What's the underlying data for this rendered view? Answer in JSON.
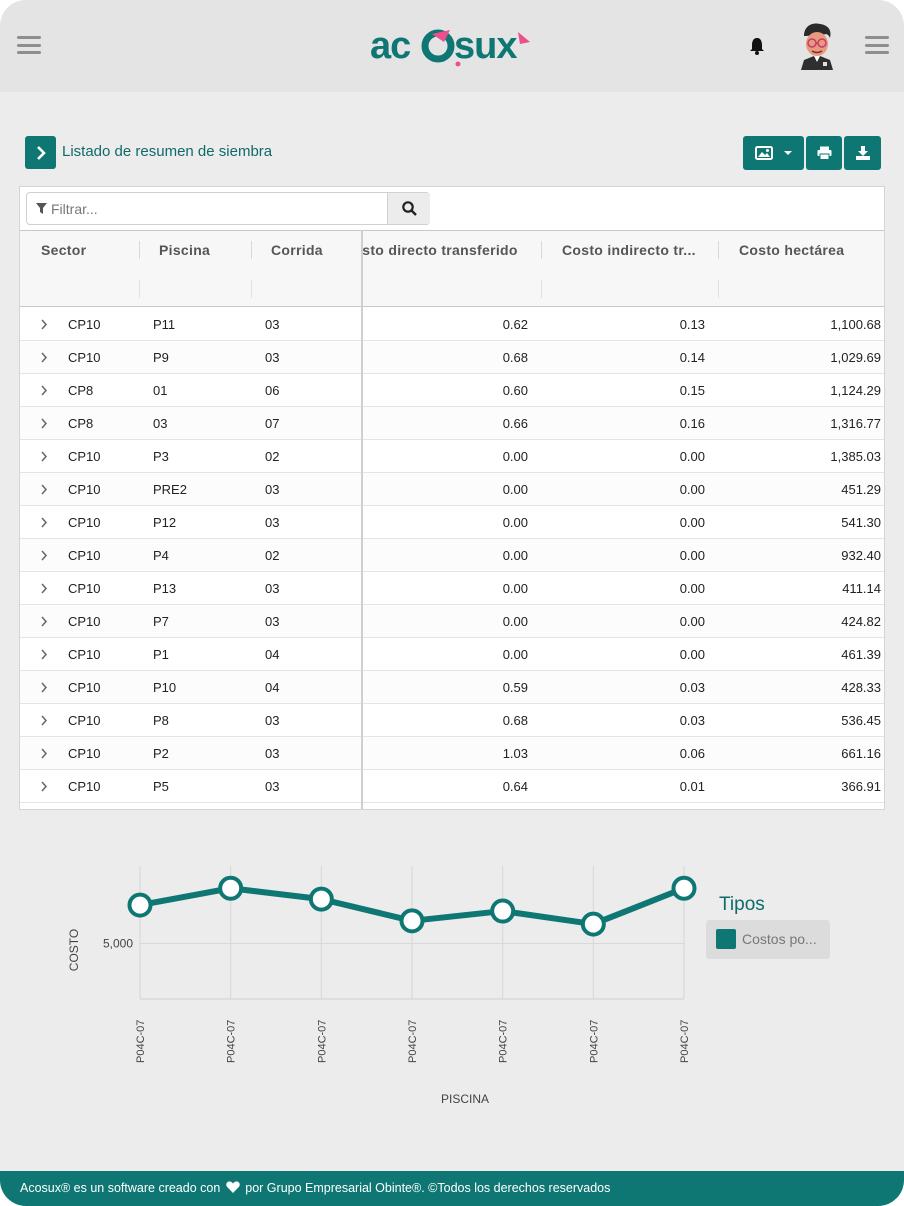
{
  "header": {
    "logo_text": "acosux",
    "menu_icon": "hamburger-icon",
    "bell_icon": "bell-icon",
    "settings_menu_icon": "hamburger-icon"
  },
  "toolbar": {
    "title": "Listado de resumen de siembra",
    "expand_icon": "chevron-right-icon",
    "image_icon": "image-icon",
    "dropdown_icon": "caret-down-icon",
    "print_icon": "printer-icon",
    "download_icon": "download-icon"
  },
  "filter": {
    "placeholder": "Filtrar...",
    "filter_icon": "funnel-icon",
    "search_icon": "search-icon"
  },
  "table": {
    "columns": [
      "Sector",
      "Piscina",
      "Corrida",
      "Costo directo transferido",
      "Costo indirecto tr...",
      "Costo hectárea"
    ],
    "rows": [
      [
        "CP10",
        "P11",
        "03",
        "0.62",
        "0.13",
        "1,100.68"
      ],
      [
        "CP10",
        "P9",
        "03",
        "0.68",
        "0.14",
        "1,029.69"
      ],
      [
        "CP8",
        "01",
        "06",
        "0.60",
        "0.15",
        "1,124.29"
      ],
      [
        "CP8",
        "03",
        "07",
        "0.66",
        "0.16",
        "1,316.77"
      ],
      [
        "CP10",
        "P3",
        "02",
        "0.00",
        "0.00",
        "1,385.03"
      ],
      [
        "CP10",
        "PRE2",
        "03",
        "0.00",
        "0.00",
        "451.29"
      ],
      [
        "CP10",
        "P12",
        "03",
        "0.00",
        "0.00",
        "541.30"
      ],
      [
        "CP10",
        "P4",
        "02",
        "0.00",
        "0.00",
        "932.40"
      ],
      [
        "CP10",
        "P13",
        "03",
        "0.00",
        "0.00",
        "411.14"
      ],
      [
        "CP10",
        "P7",
        "03",
        "0.00",
        "0.00",
        "424.82"
      ],
      [
        "CP10",
        "P1",
        "04",
        "0.00",
        "0.00",
        "461.39"
      ],
      [
        "CP10",
        "P10",
        "04",
        "0.59",
        "0.03",
        "428.33"
      ],
      [
        "CP10",
        "P8",
        "03",
        "0.68",
        "0.03",
        "536.45"
      ],
      [
        "CP10",
        "P2",
        "03",
        "1.03",
        "0.06",
        "661.16"
      ],
      [
        "CP10",
        "P5",
        "03",
        "0.64",
        "0.01",
        "366.91"
      ]
    ]
  },
  "chart_data": {
    "type": "line",
    "categories": [
      "P04C-07",
      "P04C-07",
      "P04C-07",
      "P04C-07",
      "P04C-07",
      "P04C-07",
      "P04C-07"
    ],
    "series": [
      {
        "name": "Costos po...",
        "values": [
          5710,
          6020,
          5820,
          5420,
          5600,
          5360,
          6020
        ],
        "color": "#0f7773"
      }
    ],
    "xlabel": "PISCINA",
    "ylabel": "COSTO",
    "yticks": [
      "5,000"
    ],
    "ylim": [
      3980,
      6430
    ],
    "legend_title": "Tipos",
    "legend_position": "right",
    "grid": true
  },
  "footer": {
    "text_before": "Acosux® es un software creado con",
    "heart_icon": "heart-icon",
    "text_after": "por Grupo Empresarial Obinte®. ©Todos los derechos reservados"
  }
}
